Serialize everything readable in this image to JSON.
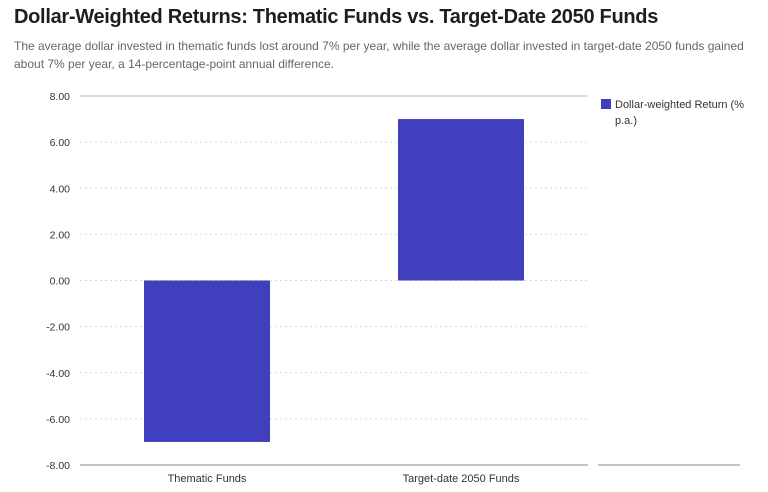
{
  "title": "Dollar-Weighted Returns: Thematic Funds vs. Target-Date 2050 Funds",
  "subtitle": "The average dollar invested in thematic funds lost around 7% per year, while the average dollar invested in target-date 2050 funds gained about 7% per year, a 14-percentage-point annual difference.",
  "colors": {
    "bar": "#4040bf",
    "grid": "#d9d9d9",
    "axis": "#888888"
  },
  "chart_data": {
    "type": "bar",
    "categories": [
      "Thematic Funds",
      "Target-date 2050 Funds"
    ],
    "series": [
      {
        "name": "Dollar-weighted Return (% p.a.)",
        "values": [
          -7.0,
          7.0
        ]
      }
    ],
    "yticks": [
      "-8.00",
      "-6.00",
      "-4.00",
      "-2.00",
      "0.00",
      "2.00",
      "4.00",
      "6.00",
      "8.00"
    ],
    "ylim": [
      -8,
      8
    ],
    "grid": true,
    "legend": {
      "position": "top-right",
      "lines": [
        "Dollar-weighted Return (%",
        "p.a.)"
      ]
    }
  }
}
